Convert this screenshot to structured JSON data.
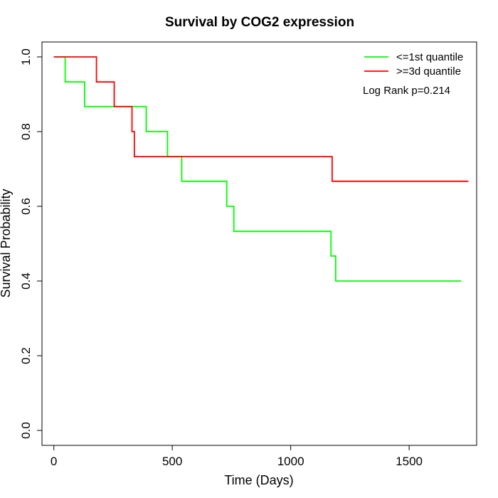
{
  "chart_data": {
    "type": "line",
    "title": "Survival by COG2 expression",
    "xlabel": "Time (Days)",
    "ylabel": "Survival Probability",
    "xlim": [
      -50,
      1785
    ],
    "ylim": [
      -0.04,
      1.04
    ],
    "xticks": [
      0,
      500,
      1000,
      1500
    ],
    "yticks": [
      0.0,
      0.2,
      0.4,
      0.6,
      0.8,
      1.0
    ],
    "xtick_labels": [
      "0",
      "500",
      "1000",
      "1500"
    ],
    "ytick_labels": [
      "0.0",
      "0.2",
      "0.4",
      "0.6",
      "0.8",
      "1.0"
    ],
    "grid": false,
    "legend_position": "top-right",
    "annotation": "Log Rank p=0.214",
    "series": [
      {
        "name": "<=1st quantile",
        "color": "#00ff00",
        "step": "post",
        "x": [
          0,
          48,
          130,
          390,
          480,
          540,
          730,
          760,
          1170,
          1190,
          1720
        ],
        "y": [
          1.0,
          0.933,
          0.867,
          0.8,
          0.733,
          0.667,
          0.6,
          0.533,
          0.467,
          0.4,
          0.4
        ]
      },
      {
        "name": ">=3d quantile",
        "color": "#ff0000",
        "step": "post",
        "x": [
          0,
          180,
          255,
          330,
          340,
          1175,
          1750
        ],
        "y": [
          1.0,
          0.933,
          0.867,
          0.8,
          0.733,
          0.667,
          0.667
        ]
      }
    ]
  }
}
